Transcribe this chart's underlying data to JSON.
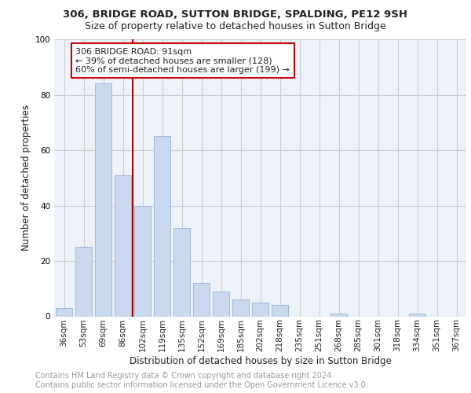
{
  "title1": "306, BRIDGE ROAD, SUTTON BRIDGE, SPALDING, PE12 9SH",
  "title2": "Size of property relative to detached houses in Sutton Bridge",
  "xlabel": "Distribution of detached houses by size in Sutton Bridge",
  "ylabel": "Number of detached properties",
  "categories": [
    "36sqm",
    "53sqm",
    "69sqm",
    "86sqm",
    "102sqm",
    "119sqm",
    "135sqm",
    "152sqm",
    "169sqm",
    "185sqm",
    "202sqm",
    "218sqm",
    "235sqm",
    "251sqm",
    "268sqm",
    "285sqm",
    "301sqm",
    "318sqm",
    "334sqm",
    "351sqm",
    "367sqm"
  ],
  "values": [
    3,
    25,
    84,
    51,
    40,
    65,
    32,
    12,
    9,
    6,
    5,
    4,
    0,
    0,
    1,
    0,
    0,
    0,
    1,
    0,
    0
  ],
  "bar_color": "#c9d9ef",
  "bar_edge_color": "#a0b8d8",
  "vline_x": 3.5,
  "vline_color": "#aa0000",
  "annotation_line1": "306 BRIDGE ROAD: 91sqm",
  "annotation_line2": "← 39% of detached houses are smaller (128)",
  "annotation_line3": "60% of semi-detached houses are larger (199) →",
  "annotation_box_color": "#ffffff",
  "annotation_box_edge": "#cc0000",
  "ylim": [
    0,
    100
  ],
  "yticks": [
    0,
    20,
    40,
    60,
    80,
    100
  ],
  "background_color": "#ffffff",
  "plot_bg_color": "#eef2fa",
  "grid_color": "#cccccc",
  "footer_text": "Contains HM Land Registry data © Crown copyright and database right 2024.\nContains public sector information licensed under the Open Government Licence v3.0.",
  "title1_fontsize": 9.5,
  "title2_fontsize": 9,
  "axis_label_fontsize": 8.5,
  "tick_fontsize": 7.5,
  "annotation_fontsize": 8,
  "footer_fontsize": 7
}
